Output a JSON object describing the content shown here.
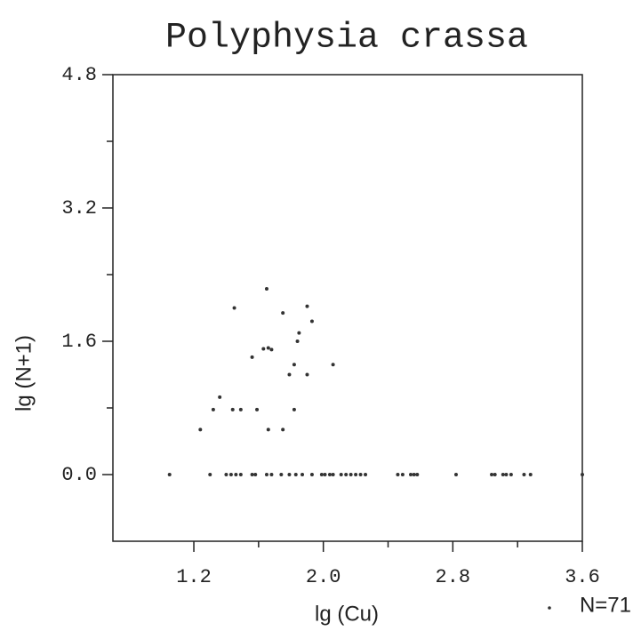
{
  "chart_data": {
    "type": "scatter",
    "title": "Polyphysia crassa",
    "x_label": "lg (Cu)",
    "y_label": "lg (N+1)",
    "legend_label": "N=71",
    "color": "#333333",
    "xlim": [
      0.7,
      3.6
    ],
    "ylim": [
      -0.8,
      4.8
    ],
    "xticks": [
      1.2,
      {
        "value": 2,
        "label": "2.0"
      },
      2.8,
      3.6
    ],
    "yticks": [
      {
        "value": 0,
        "label": "0.0"
      },
      1.6,
      3.2,
      4.8
    ],
    "x": [
      1.05,
      1.3,
      1.4,
      1.43,
      1.46,
      1.49,
      1.56,
      1.58,
      1.65,
      1.68,
      1.74,
      1.79,
      1.83,
      1.87,
      1.93,
      1.99,
      2.01,
      2.04,
      2.06,
      2.11,
      2.14,
      2.17,
      2.2,
      2.23,
      2.26,
      2.46,
      2.49,
      2.54,
      2.56,
      2.58,
      2.82,
      3.04,
      3.06,
      3.11,
      3.13,
      3.16,
      3.24,
      3.28,
      3.6,
      1.65,
      1.45,
      1.9,
      1.75,
      1.93,
      1.85,
      1.84,
      1.66,
      1.63,
      1.68,
      1.56,
      2.06,
      1.82,
      1.79,
      1.9,
      1.36,
      1.32,
      1.44,
      1.49,
      1.59,
      1.82,
      1.24,
      1.66,
      1.75
    ],
    "values": [
      0,
      0,
      0,
      0,
      0,
      0,
      0,
      0,
      0,
      0,
      0,
      0,
      0,
      0,
      0,
      0,
      0,
      0,
      0,
      0,
      0,
      0,
      0,
      0,
      0,
      0,
      0,
      0,
      0,
      0,
      0,
      0,
      0,
      0,
      0,
      0,
      0,
      0,
      0,
      2.23,
      2.0,
      2.02,
      1.94,
      1.84,
      1.7,
      1.6,
      1.52,
      1.51,
      1.5,
      1.41,
      1.32,
      1.32,
      1.2,
      1.2,
      0.93,
      0.78,
      0.78,
      0.78,
      0.78,
      0.78,
      0.54,
      0.54,
      0.54
    ]
  }
}
